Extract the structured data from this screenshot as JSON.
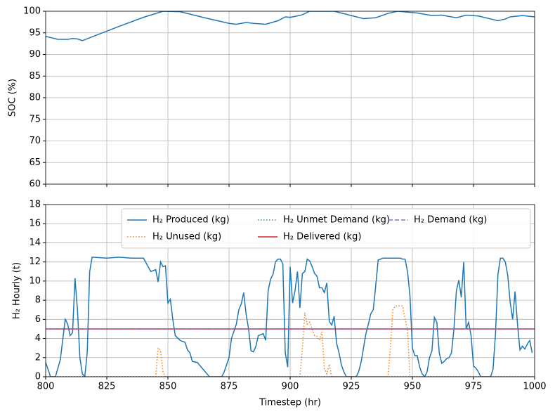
{
  "chart_data": [
    {
      "type": "line",
      "ylabel": "SOC (%)",
      "xlim": [
        800,
        1000
      ],
      "ylim": [
        60,
        100
      ],
      "xticks": [
        800,
        825,
        850,
        875,
        900,
        925,
        950,
        975,
        1000
      ],
      "yticks": [
        60,
        65,
        70,
        75,
        80,
        85,
        90,
        95,
        100
      ],
      "grid": true,
      "series": [
        {
          "color": "#1f77b4",
          "style": "solid",
          "x": [
            800,
            805,
            809,
            811,
            813,
            815,
            820,
            830,
            840,
            848,
            855,
            865,
            875,
            878,
            882,
            885,
            890,
            895,
            898,
            900,
            902,
            905,
            908,
            918,
            925,
            930,
            935,
            940,
            944,
            952,
            958,
            962,
            968,
            972,
            977,
            985,
            988,
            990,
            995,
            1000
          ],
          "values": [
            94.2,
            93.5,
            93.5,
            93.7,
            93.6,
            93.2,
            94.3,
            96.5,
            98.6,
            100,
            99.9,
            98.5,
            97.2,
            97,
            97.4,
            97.2,
            97,
            97.8,
            98.7,
            98.6,
            98.8,
            99.2,
            100,
            100,
            99,
            98.3,
            98.5,
            99.5,
            100,
            99.6,
            99,
            99.1,
            98.5,
            99.1,
            98.9,
            97.8,
            98.2,
            98.7,
            99,
            98.7
          ]
        }
      ]
    },
    {
      "type": "line",
      "xlabel": "Timestep (hr)",
      "ylabel": "H₂ Hourly (t)",
      "xlim": [
        800,
        1000
      ],
      "ylim": [
        0,
        18
      ],
      "xticks": [
        800,
        825,
        850,
        875,
        900,
        925,
        950,
        975,
        1000
      ],
      "yticks": [
        0,
        2,
        4,
        6,
        8,
        10,
        12,
        14,
        16,
        18
      ],
      "grid": true,
      "legend": "upper right",
      "legend_columns": 3,
      "series": [
        {
          "name": "H₂ Produced (kg)",
          "color": "#1f77b4",
          "style": "solid",
          "x": [
            800,
            802,
            804,
            806,
            808,
            809,
            810,
            811,
            812,
            813,
            814,
            815,
            816,
            817,
            818,
            819,
            825,
            830,
            835,
            840,
            843,
            845,
            846,
            847,
            848,
            849,
            850,
            851,
            852,
            853,
            855,
            857,
            858,
            859,
            860,
            862,
            863,
            865,
            867,
            872,
            873,
            875,
            876,
            878,
            879,
            880,
            881,
            882,
            883,
            884,
            885,
            886,
            887,
            888,
            889,
            890,
            891,
            892,
            893,
            894,
            895,
            896,
            897,
            898,
            899,
            900,
            901,
            902,
            903,
            904,
            905,
            906,
            907,
            908,
            909,
            910,
            911,
            912,
            913,
            914,
            915,
            916,
            917,
            918,
            919,
            920,
            921,
            922,
            923,
            927,
            928,
            929,
            930,
            931,
            932,
            933,
            934,
            935,
            936,
            938,
            945,
            946,
            947,
            948,
            949,
            950,
            951,
            952,
            953,
            954,
            955,
            956,
            957,
            958,
            959,
            960,
            961,
            962,
            963,
            964,
            965,
            966,
            967,
            968,
            969,
            970,
            971,
            972,
            973,
            974,
            975,
            976,
            977,
            978,
            982,
            983,
            984,
            985,
            986,
            987,
            988,
            989,
            990,
            991,
            992,
            993,
            994,
            995,
            996,
            997,
            998,
            999
          ],
          "values": [
            1.5,
            0,
            0,
            1.8,
            6,
            5.5,
            4.3,
            4.6,
            10.3,
            7,
            2,
            0.3,
            0,
            2.5,
            11,
            12.5,
            12.4,
            12.5,
            12.4,
            12.4,
            11,
            11.2,
            9.9,
            12,
            11.5,
            11.6,
            7.7,
            8.1,
            6,
            4.3,
            3.8,
            3.6,
            2.8,
            2.5,
            1.6,
            1.5,
            1.2,
            0.6,
            0,
            0,
            0.5,
            2,
            4,
            5.5,
            7,
            7.6,
            8.8,
            6.5,
            5,
            2.7,
            2.6,
            3.2,
            4.3,
            4.4,
            4.5,
            3.8,
            9,
            10.2,
            10.7,
            12,
            12.3,
            12.3,
            11.8,
            2.5,
            1,
            11.5,
            7.7,
            9,
            11,
            7.2,
            10.8,
            11,
            12.3,
            12.1,
            11.5,
            10.8,
            10.5,
            9.3,
            9.3,
            8.8,
            9.8,
            5.8,
            5.4,
            6.3,
            3.5,
            2.5,
            1.2,
            0.5,
            0,
            0,
            0.5,
            1.5,
            3,
            4.5,
            5.5,
            6.6,
            7,
            9.5,
            12.2,
            12.4,
            12.4,
            12.3,
            12.3,
            11,
            8.5,
            3,
            2.2,
            2.2,
            1,
            0.3,
            0,
            0.5,
            2,
            2.7,
            6.2,
            5.7,
            2.5,
            1.4,
            1.6,
            1.9,
            2,
            2.5,
            5,
            9,
            10.1,
            8.3,
            12,
            5,
            5.7,
            4.3,
            1.1,
            0.9,
            0.5,
            0,
            0,
            0.8,
            4.5,
            10.7,
            12.4,
            12.4,
            12,
            10.6,
            7.8,
            6,
            8.9,
            5.5,
            2.8,
            3.2,
            2.9,
            3.4,
            3.8,
            2.5
          ]
        },
        {
          "name": "H₂ Unused (kg)",
          "color": "#ff7f0e",
          "style": "dotted",
          "x": [
            800,
            845,
            846,
            847,
            848,
            849,
            904,
            905,
            906,
            907,
            908,
            909,
            910,
            911,
            912,
            913,
            914,
            915,
            916,
            917,
            940,
            941,
            942,
            943,
            946,
            947,
            948,
            949,
            1000
          ],
          "values": [
            0,
            0,
            3,
            2.8,
            0.5,
            0,
            0,
            3,
            6.7,
            5.5,
            5.7,
            5,
            4.3,
            4.2,
            3.8,
            4.7,
            0.8,
            0.3,
            1.3,
            0,
            0,
            3,
            7,
            7.4,
            7.4,
            6,
            5,
            0,
            0
          ]
        },
        {
          "name": "H₂ Unmet Demand (kg)",
          "color": "#2ca02c",
          "style": "dotted",
          "x": [
            800,
            1000
          ],
          "values": [
            0,
            0
          ]
        },
        {
          "name": "H₂ Delivered (kg)",
          "color": "#d62728",
          "style": "solid",
          "x": [
            800,
            1000
          ],
          "values": [
            5,
            5
          ]
        },
        {
          "name": "H₂ Demand (kg)",
          "color": "#9467bd",
          "style": "dashed",
          "x": [
            800,
            1000
          ],
          "values": [
            5,
            5
          ]
        }
      ]
    }
  ]
}
